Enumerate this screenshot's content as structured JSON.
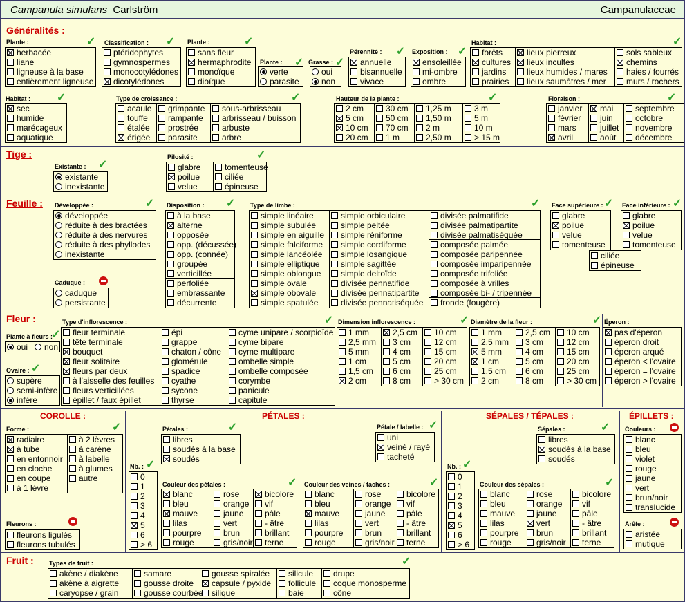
{
  "header": {
    "species": "Campanula simulans",
    "author": "Carlström",
    "family": "Campanulaceae"
  },
  "sections": {
    "generalites": "Généralités :",
    "tige": "Tige :",
    "feuille": "Feuille :",
    "fleur": "Fleur :",
    "fruit": "Fruit :",
    "corolle": "COROLLE :",
    "petales": "PÉTALES :",
    "sepales": "SÉPALES / TÉPALES :",
    "epillets": "ÉPILLETS :"
  },
  "labels": {
    "plante1": "Plante :",
    "classification": "Classification :",
    "plante2": "Plante :",
    "plante3": "Plante :",
    "grasse": "Grasse :",
    "perennite": "Pérennité :",
    "exposition": "Exposition :",
    "habitat1": "Habitat :",
    "habitat2": "Habitat :",
    "croissance": "Type de croissance :",
    "hauteur": "Hauteur de la plante :",
    "floraison": "Floraison :",
    "existante": "Existante :",
    "pilosite": "Pilosité :",
    "developpee": "Développée :",
    "disposition": "Disposition :",
    "limbe": "Type de limbe :",
    "face_sup": "Face supérieure :",
    "face_inf": "Face inférieure :",
    "caduque": "Caduque :",
    "plante_fleurs": "Plante à fleurs :",
    "ovaire": "Ovaire :",
    "inflorescence": "Type d'inflorescence :",
    "dim_infl": "Dimension inflorescence :",
    "diam_fleur": "Diamètre de la fleur :",
    "eperon": "Éperon :",
    "forme": "Forme :",
    "petales": "Pétales :",
    "petale_labelle": "Pétale / labelle :",
    "nb1": "Nb. :",
    "couleur_petales": "Couleur des pétales :",
    "couleur_veines": "Couleur des veines / taches :",
    "sepales": "Sépales :",
    "nb2": "Nb. :",
    "couleur_sepales": "Couleur des sépales :",
    "couleurs": "Couleurs :",
    "arete": "Arête :",
    "fleurons": "Fleurons :",
    "types_fruit": "Types de fruit :"
  },
  "groups": {
    "plante1": [
      [
        "herbacée",
        1
      ],
      [
        "liane",
        0
      ],
      [
        "ligneuse à la base",
        0
      ],
      [
        "entièrement ligneuse",
        0
      ]
    ],
    "classification": [
      [
        "ptéridophytes",
        0
      ],
      [
        "gymnospermes",
        0
      ],
      [
        "monocotylédones",
        0
      ],
      [
        "dicotylédones",
        1
      ]
    ],
    "plante2": [
      [
        "sans fleur",
        0
      ],
      [
        "hermaphrodite",
        1
      ],
      [
        "monoïque",
        0
      ],
      [
        "dioïque",
        0
      ]
    ],
    "plante3": [
      [
        "verte",
        1
      ],
      [
        "parasite",
        0
      ]
    ],
    "grasse": [
      [
        "oui",
        0
      ],
      [
        "non",
        1
      ]
    ],
    "perennite": [
      [
        "annuelle",
        1
      ],
      [
        "bisannuelle",
        0
      ],
      [
        "vivace",
        0
      ]
    ],
    "exposition": [
      [
        "ensoleillée",
        1
      ],
      [
        "mi-ombre",
        0
      ],
      [
        "ombre",
        0
      ]
    ],
    "habitat1_c1": [
      [
        "forêts",
        0
      ],
      [
        "cultures",
        1
      ],
      [
        "jardins",
        0
      ],
      [
        "prairies",
        0
      ]
    ],
    "habitat1_c2": [
      [
        "lieux pierreux",
        1
      ],
      [
        "lieux incultes",
        1
      ],
      [
        "lieux humides / mares",
        0
      ],
      [
        "lieux saumâtres / mer",
        0
      ]
    ],
    "habitat1_c3": [
      [
        "sols sableux",
        0
      ],
      [
        "chemins",
        1
      ],
      [
        "haies / fourrés",
        0
      ],
      [
        "murs / rochers",
        0
      ]
    ],
    "habitat2": [
      [
        "sec",
        1
      ],
      [
        "humide",
        0
      ],
      [
        "marécageux",
        0
      ],
      [
        "aquatique",
        0
      ]
    ],
    "croissance_c1": [
      [
        "acaule",
        0
      ],
      [
        "touffe",
        0
      ],
      [
        "étalée",
        0
      ],
      [
        "érigée",
        1
      ]
    ],
    "croissance_c2": [
      [
        "grimpante",
        0
      ],
      [
        "rampante",
        0
      ],
      [
        "prostrée",
        0
      ],
      [
        "parasite",
        0
      ]
    ],
    "croissance_c3": [
      [
        "sous-arbrisseau",
        0
      ],
      [
        "arbrisseau / buisson",
        0
      ],
      [
        "arbuste",
        0
      ],
      [
        "arbre",
        0
      ]
    ],
    "hauteur_c1": [
      [
        "2 cm",
        0
      ],
      [
        "5 cm",
        1
      ],
      [
        "10 cm",
        1
      ],
      [
        "20 cm",
        0
      ]
    ],
    "hauteur_c2": [
      [
        "30 cm",
        0
      ],
      [
        "50 cm",
        0
      ],
      [
        "70 cm",
        0
      ],
      [
        "1 m",
        0
      ]
    ],
    "hauteur_c3": [
      [
        "1,25 m",
        0
      ],
      [
        "1,50 m",
        0
      ],
      [
        "2 m",
        0
      ],
      [
        "2,50 m",
        0
      ]
    ],
    "hauteur_c4": [
      [
        "3 m",
        0
      ],
      [
        "5 m",
        0
      ],
      [
        "10 m",
        0
      ],
      [
        "> 15 m",
        0
      ]
    ],
    "floraison_c1": [
      [
        "janvier",
        0
      ],
      [
        "février",
        0
      ],
      [
        "mars",
        0
      ],
      [
        "avril",
        1
      ]
    ],
    "floraison_c2": [
      [
        "mai",
        1
      ],
      [
        "juin",
        0
      ],
      [
        "juillet",
        0
      ],
      [
        "août",
        0
      ]
    ],
    "floraison_c3": [
      [
        "septembre",
        0
      ],
      [
        "octobre",
        0
      ],
      [
        "novembre",
        0
      ],
      [
        "décembre",
        0
      ]
    ],
    "existante": [
      [
        "existante",
        1
      ],
      [
        "inexistante",
        0
      ]
    ],
    "pilosite_c1": [
      [
        "glabre",
        0
      ],
      [
        "poilue",
        1
      ],
      [
        "velue",
        0
      ]
    ],
    "pilosite_c2": [
      [
        "tomenteuse",
        0
      ],
      [
        "ciliée",
        0
      ],
      [
        "épineuse",
        0
      ]
    ],
    "developpee": [
      [
        "développée",
        1
      ],
      [
        "réduite à des bractées",
        0
      ],
      [
        "réduite à des nervures",
        0
      ],
      [
        "réduite à des phyllodes",
        0
      ],
      [
        "inexistante",
        0
      ]
    ],
    "caduque": [
      [
        "caduque",
        0
      ],
      [
        "persistante",
        0
      ]
    ],
    "disposition_a": [
      [
        "à la base",
        0
      ],
      [
        "alterne",
        1
      ],
      [
        "opposée",
        0
      ],
      [
        "opp. (décussée)",
        0
      ],
      [
        "opp. (connée)",
        0
      ],
      [
        "groupée",
        0
      ],
      [
        "verticillée",
        0
      ]
    ],
    "disposition_b": [
      [
        "perfoliée",
        0
      ],
      [
        "embrassante",
        0
      ],
      [
        "décurrente",
        0
      ]
    ],
    "limbe_c1": [
      [
        "simple linéaire",
        0
      ],
      [
        "simple subulée",
        0
      ],
      [
        "simple en aiguille",
        0
      ],
      [
        "simple falciforme",
        0
      ],
      [
        "simple lancéolée",
        0
      ],
      [
        "simple elliptique",
        0
      ],
      [
        "simple oblongue",
        0
      ],
      [
        "simple ovale",
        0
      ],
      [
        "simple obovale",
        1
      ],
      [
        "simple spatulée",
        0
      ]
    ],
    "limbe_c2": [
      [
        "simple orbiculaire",
        0
      ],
      [
        "simple peltée",
        0
      ],
      [
        "simple réniforme",
        0
      ],
      [
        "simple cordiforme",
        0
      ],
      [
        "simple losangique",
        0
      ],
      [
        "simple sagittée",
        0
      ],
      [
        "simple deltoïde",
        0
      ],
      [
        "divisée pennatifide",
        0
      ],
      [
        "divisée pennatipartite",
        0
      ],
      [
        "divisée pennatiséquée",
        0
      ]
    ],
    "limbe_c3a": [
      [
        "divisée palmatifide",
        0
      ],
      [
        "divisée palmatipartite",
        0
      ],
      [
        "divisée palmatiséquée",
        0
      ]
    ],
    "limbe_c3b": [
      [
        "composée palmée",
        0
      ],
      [
        "composée paripennée",
        0
      ],
      [
        "composée imparipennée",
        0
      ],
      [
        "composée trifoliée",
        0
      ],
      [
        "composée à vrilles",
        0
      ],
      [
        "composée bi- / tripennée",
        0
      ]
    ],
    "limbe_c3c": [
      [
        "fronde (fougère)",
        0
      ]
    ],
    "face_sup": [
      [
        "glabre",
        0
      ],
      [
        "poilue",
        1
      ],
      [
        "velue",
        0
      ],
      [
        "tomenteuse",
        0
      ]
    ],
    "face_inf": [
      [
        "glabre",
        0
      ],
      [
        "poilue",
        1
      ],
      [
        "velue",
        0
      ],
      [
        "tomenteuse",
        0
      ]
    ],
    "face_ext": [
      [
        "ciliée",
        0
      ],
      [
        "épineuse",
        0
      ]
    ],
    "plante_fleurs": [
      [
        "oui",
        1
      ],
      [
        "non",
        0
      ]
    ],
    "ovaire": [
      [
        "supère",
        0
      ],
      [
        "semi-infère",
        0
      ],
      [
        "infère",
        1
      ]
    ],
    "infl_c1": [
      [
        "fleur terminale",
        0
      ],
      [
        "tête terminale",
        0
      ],
      [
        "bouquet",
        1
      ],
      [
        "fleur solitaire",
        1
      ],
      [
        "fleurs par deux",
        1
      ],
      [
        "à l'aisselle des feuilles",
        0
      ],
      [
        "fleurs verticillées",
        0
      ],
      [
        "épillet / faux épillet",
        0
      ]
    ],
    "infl_c2": [
      [
        "épi",
        0
      ],
      [
        "grappe",
        0
      ],
      [
        "chaton / cône",
        0
      ],
      [
        "glomérule",
        0
      ],
      [
        "spadice",
        0
      ],
      [
        "cyathe",
        0
      ],
      [
        "sycone",
        0
      ],
      [
        "thyrse",
        0
      ]
    ],
    "infl_c3": [
      [
        "cyme unipare / scorpioïde",
        0
      ],
      [
        "cyme bipare",
        0
      ],
      [
        "cyme multipare",
        0
      ],
      [
        "ombelle simple",
        0
      ],
      [
        "ombelle composée",
        0
      ],
      [
        "corymbe",
        0
      ],
      [
        "panicule",
        0
      ],
      [
        "capitule",
        0
      ]
    ],
    "dim_c1": [
      [
        "1 mm",
        0
      ],
      [
        "2,5 mm",
        0
      ],
      [
        "5 mm",
        0
      ],
      [
        "1 cm",
        0
      ],
      [
        "1,5 cm",
        0
      ],
      [
        "2 cm",
        1
      ]
    ],
    "dim_c2": [
      [
        "2,5 cm",
        1
      ],
      [
        "3 cm",
        0
      ],
      [
        "4 cm",
        0
      ],
      [
        "5 cm",
        0
      ],
      [
        "6 cm",
        0
      ],
      [
        "8 cm",
        0
      ]
    ],
    "dim_c3": [
      [
        "10 cm",
        0
      ],
      [
        "12 cm",
        0
      ],
      [
        "15 cm",
        0
      ],
      [
        "20 cm",
        0
      ],
      [
        "25 cm",
        0
      ],
      [
        "> 30 cm",
        0
      ]
    ],
    "diam_c1": [
      [
        "1 mm",
        0
      ],
      [
        "2,5 mm",
        0
      ],
      [
        "5 mm",
        1
      ],
      [
        "1 cm",
        1
      ],
      [
        "1,5 cm",
        0
      ],
      [
        "2 cm",
        0
      ]
    ],
    "diam_c2": [
      [
        "2,5 cm",
        0
      ],
      [
        "3 cm",
        0
      ],
      [
        "4 cm",
        0
      ],
      [
        "5 cm",
        0
      ],
      [
        "6 cm",
        0
      ],
      [
        "8 cm",
        0
      ]
    ],
    "diam_c3": [
      [
        "10 cm",
        0
      ],
      [
        "12 cm",
        0
      ],
      [
        "15 cm",
        0
      ],
      [
        "20 cm",
        0
      ],
      [
        "25 cm",
        0
      ],
      [
        "> 30 cm",
        0
      ]
    ],
    "eperon": [
      [
        "pas d'éperon",
        1
      ],
      [
        "éperon droit",
        0
      ],
      [
        "éperon arqué",
        0
      ],
      [
        "éperon < l'ovaire",
        0
      ],
      [
        "éperon = l'ovaire",
        0
      ],
      [
        "éperon > l'ovaire",
        0
      ]
    ],
    "forme_c1": [
      [
        "radiaire",
        1
      ],
      [
        "à tube",
        1
      ],
      [
        "en entonnoir",
        0
      ],
      [
        "en cloche",
        0
      ],
      [
        "en coupe",
        0
      ],
      [
        "à 1 lèvre",
        0
      ]
    ],
    "forme_c2": [
      [
        "à 2 lèvres",
        0
      ],
      [
        "à carène",
        0
      ],
      [
        "à labelle",
        0
      ],
      [
        "à glumes",
        0
      ],
      [
        "autre",
        0
      ]
    ],
    "fleurons": [
      [
        "fleurons ligulés",
        0
      ],
      [
        "fleurons tubulés",
        0
      ]
    ],
    "petales": [
      [
        "libres",
        0
      ],
      [
        "soudés à la base",
        0
      ],
      [
        "soudés",
        1
      ]
    ],
    "petale_labelle": [
      [
        "uni",
        0
      ],
      [
        "veiné / rayé",
        1
      ],
      [
        "tacheté",
        0
      ]
    ],
    "nb1": [
      [
        "0",
        0
      ],
      [
        "1",
        0
      ],
      [
        "2",
        0
      ],
      [
        "3",
        0
      ],
      [
        "4",
        0
      ],
      [
        "5",
        1
      ],
      [
        "6",
        0
      ],
      [
        "> 6",
        0
      ]
    ],
    "cp_c1": [
      [
        "blanc",
        1
      ],
      [
        "bleu",
        0
      ],
      [
        "mauve",
        1
      ],
      [
        "lilas",
        0
      ],
      [
        "pourpre",
        0
      ],
      [
        "rouge",
        0
      ]
    ],
    "cp_c2": [
      [
        "rose",
        0
      ],
      [
        "orange",
        0
      ],
      [
        "jaune",
        0
      ],
      [
        "vert",
        0
      ],
      [
        "brun",
        0
      ],
      [
        "gris/noir",
        0
      ]
    ],
    "cp_c3": [
      [
        "bicolore",
        1
      ],
      [
        "vif",
        0
      ],
      [
        "pâle",
        0
      ],
      [
        "- âtre",
        0
      ],
      [
        "brillant",
        0
      ],
      [
        "terne",
        0
      ]
    ],
    "cv_c1": [
      [
        "blanc",
        0
      ],
      [
        "bleu",
        0
      ],
      [
        "mauve",
        1
      ],
      [
        "lilas",
        0
      ],
      [
        "pourpre",
        0
      ],
      [
        "rouge",
        0
      ]
    ],
    "cv_c2": [
      [
        "rose",
        0
      ],
      [
        "orange",
        0
      ],
      [
        "jaune",
        0
      ],
      [
        "vert",
        0
      ],
      [
        "brun",
        0
      ],
      [
        "gris/noir",
        0
      ]
    ],
    "cv_c3": [
      [
        "bicolore",
        0
      ],
      [
        "vif",
        0
      ],
      [
        "pâle",
        0
      ],
      [
        "- âtre",
        0
      ],
      [
        "brillant",
        0
      ],
      [
        "terne",
        0
      ]
    ],
    "sepales": [
      [
        "libres",
        0
      ],
      [
        "soudés à la base",
        1
      ],
      [
        "soudés",
        0
      ]
    ],
    "nb2": [
      [
        "0",
        0
      ],
      [
        "1",
        0
      ],
      [
        "2",
        0
      ],
      [
        "3",
        0
      ],
      [
        "4",
        0
      ],
      [
        "5",
        1
      ],
      [
        "6",
        0
      ],
      [
        "> 6",
        0
      ]
    ],
    "cs_c1": [
      [
        "blanc",
        0
      ],
      [
        "bleu",
        0
      ],
      [
        "mauve",
        0
      ],
      [
        "lilas",
        0
      ],
      [
        "pourpre",
        0
      ],
      [
        "rouge",
        0
      ]
    ],
    "cs_c2": [
      [
        "rose",
        0
      ],
      [
        "orange",
        0
      ],
      [
        "jaune",
        0
      ],
      [
        "vert",
        1
      ],
      [
        "brun",
        0
      ],
      [
        "gris/noir",
        0
      ]
    ],
    "cs_c3": [
      [
        "bicolore",
        0
      ],
      [
        "vif",
        0
      ],
      [
        "pâle",
        0
      ],
      [
        "- âtre",
        0
      ],
      [
        "brillant",
        0
      ],
      [
        "terne",
        0
      ]
    ],
    "couleurs": [
      [
        "blanc",
        0
      ],
      [
        "bleu",
        0
      ],
      [
        "violet",
        0
      ],
      [
        "rouge",
        0
      ],
      [
        "jaune",
        0
      ],
      [
        "vert",
        0
      ],
      [
        "brun/noir",
        0
      ],
      [
        "translucide",
        0
      ]
    ],
    "arete": [
      [
        "aristée",
        0
      ],
      [
        "mutique",
        0
      ]
    ],
    "fruit_c1": [
      [
        "akène / diakène",
        0
      ],
      [
        "akène à aigrette",
        0
      ],
      [
        "caryopse / grain",
        0
      ]
    ],
    "fruit_c2": [
      [
        "samare",
        0
      ],
      [
        "gousse droite",
        0
      ],
      [
        "gousse courbée",
        0
      ]
    ],
    "fruit_c3": [
      [
        "gousse spiralée",
        0
      ],
      [
        "capsule / pyxide",
        1
      ],
      [
        "silique",
        0
      ]
    ],
    "fruit_c4": [
      [
        "silicule",
        0
      ],
      [
        "follicule",
        0
      ],
      [
        "baie",
        0
      ]
    ],
    "fruit_c5": [
      [
        "drupe",
        0
      ],
      [
        "coque monosperme",
        0
      ],
      [
        "cône",
        0
      ]
    ]
  },
  "icons": {
    "check": "check-icon",
    "forbidden": "no-entry-icon"
  },
  "colors": {
    "background": "#fdfdd9",
    "header_background": "#e6f6de",
    "section_title": "#cc0000",
    "check_mark": "#2ca02c",
    "no_entry": "#cc1111"
  }
}
